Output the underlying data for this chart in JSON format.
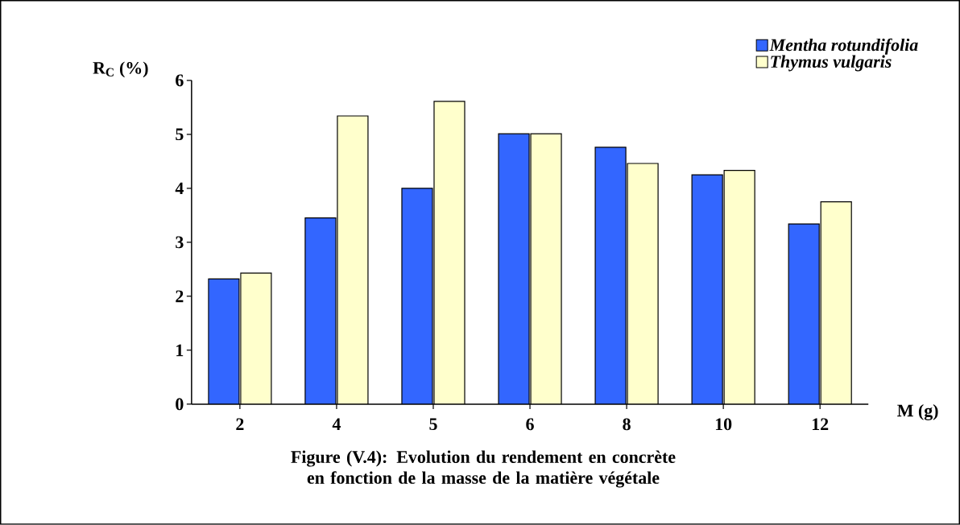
{
  "chart_data": {
    "type": "bar",
    "title": "Figure (V.4): Evolution du rendement en concrète en fonction de la masse de la matière végétale",
    "xlabel": "M (g)",
    "ylabel": "R$_{C}$ (%)",
    "categories": [
      "2",
      "4",
      "5",
      "6",
      "8",
      "10",
      "12"
    ],
    "series": [
      {
        "name": "Mentha rotundifolia",
        "color": "#3366ff",
        "values": [
          2.32,
          3.45,
          4.0,
          5.01,
          4.76,
          4.25,
          3.34
        ]
      },
      {
        "name": "Thymus vulgaris",
        "color": "#ffffcc",
        "values": [
          2.43,
          5.34,
          5.61,
          5.01,
          4.46,
          4.33,
          3.75
        ]
      }
    ],
    "ylim": [
      0,
      6
    ],
    "yticks": [
      0,
      1,
      2,
      3,
      4,
      5,
      6
    ],
    "legend": "top right"
  }
}
